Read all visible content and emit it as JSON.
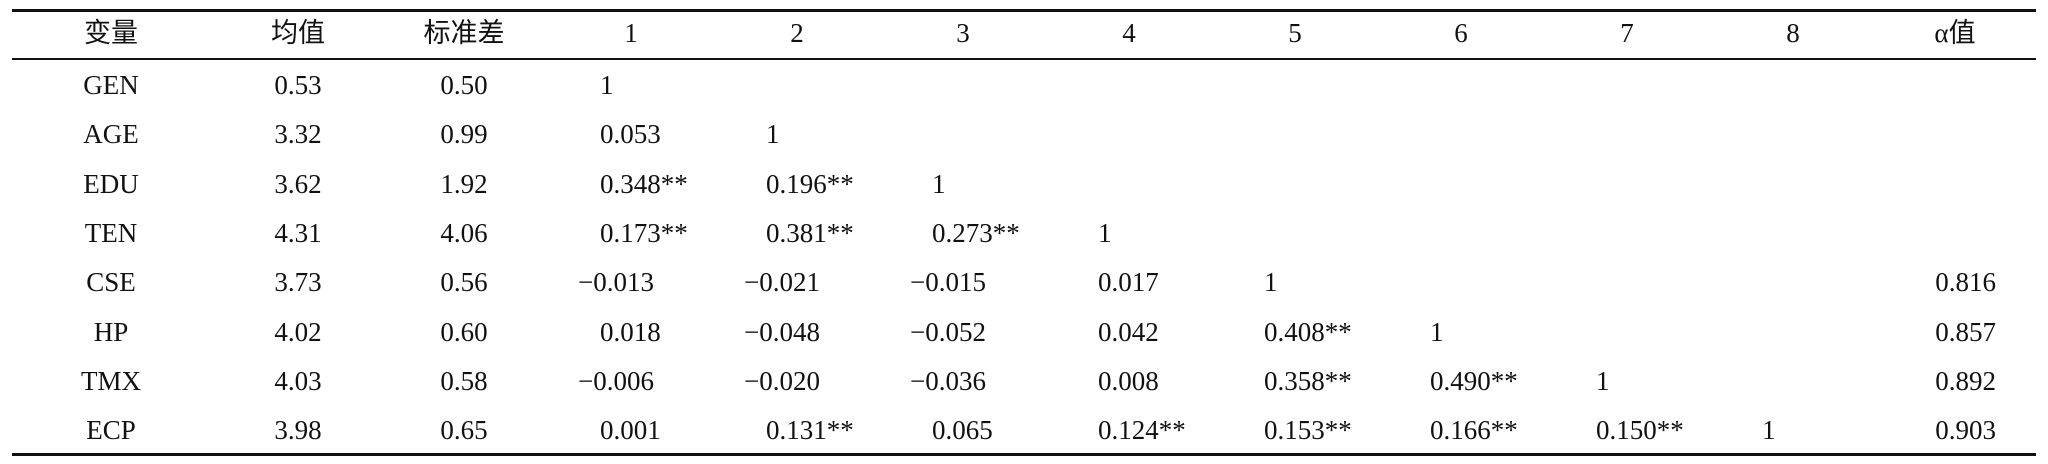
{
  "table": {
    "headers": [
      "变量",
      "均值",
      "标准差",
      "1",
      "2",
      "3",
      "4",
      "5",
      "6",
      "7",
      "8",
      "α值"
    ],
    "rows": [
      {
        "label": "GEN",
        "mean": "0.53",
        "sd": "0.50",
        "correlations": [
          "1"
        ]
      },
      {
        "label": "AGE",
        "mean": "3.32",
        "sd": "0.99",
        "correlations": [
          "0.053",
          "1"
        ]
      },
      {
        "label": "EDU",
        "mean": "3.62",
        "sd": "1.92",
        "correlations": [
          "0.348**",
          "0.196**",
          "1"
        ]
      },
      {
        "label": "TEN",
        "mean": "4.31",
        "sd": "4.06",
        "correlations": [
          "0.173**",
          "0.381**",
          "0.273**",
          "1"
        ]
      },
      {
        "label": "CSE",
        "mean": "3.73",
        "sd": "0.56",
        "correlations": [
          "−0.013",
          "−0.021",
          "−0.015",
          "0.017",
          "1"
        ],
        "alpha": "0.816"
      },
      {
        "label": "HP",
        "mean": "4.02",
        "sd": "0.60",
        "correlations": [
          "0.018",
          "−0.048",
          "−0.052",
          "0.042",
          "0.408**",
          "1"
        ],
        "alpha": "0.857"
      },
      {
        "label": "TMX",
        "mean": "4.03",
        "sd": "0.58",
        "correlations": [
          "−0.006",
          "−0.020",
          "−0.036",
          "0.008",
          "0.358**",
          "0.490**",
          "1"
        ],
        "alpha": "0.892"
      },
      {
        "label": "ECP",
        "mean": "3.98",
        "sd": "0.65",
        "correlations": [
          "0.001",
          "0.131**",
          "0.065",
          "0.124**",
          "0.153**",
          "0.166**",
          "0.150**",
          "1"
        ],
        "alpha": "0.903"
      }
    ]
  }
}
